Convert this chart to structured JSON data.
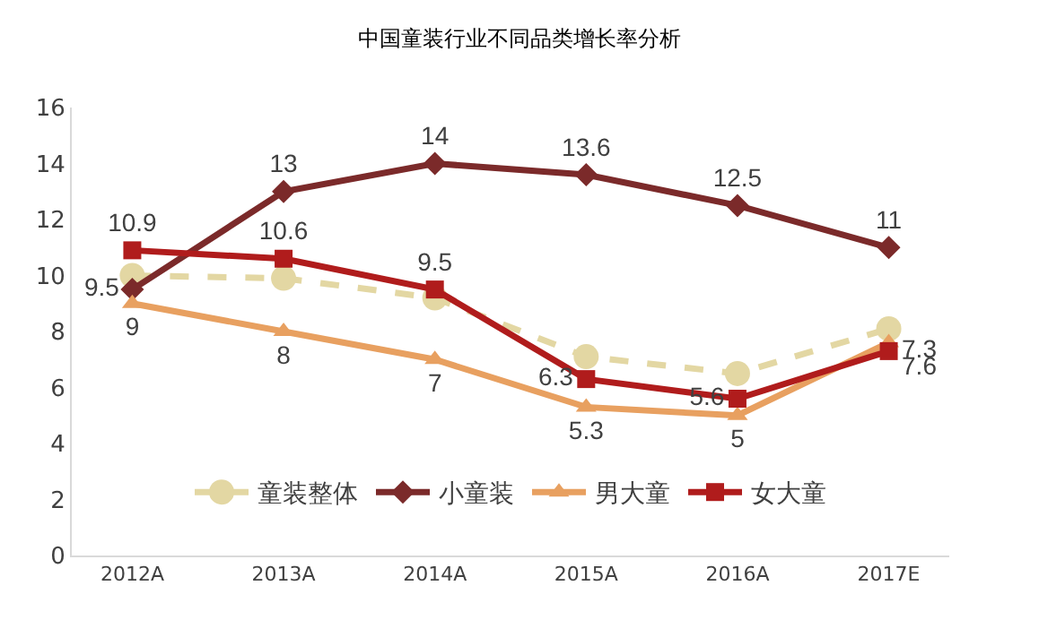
{
  "chart_data": {
    "type": "line",
    "title": "中国童装行业不同品类增长率分析",
    "categories": [
      "2012A",
      "2013A",
      "2014A",
      "2015A",
      "2016A",
      "2017E"
    ],
    "ylim": [
      0,
      16
    ],
    "yticks": [
      0,
      2,
      4,
      6,
      8,
      10,
      12,
      14,
      16
    ],
    "grid": false,
    "legend": "bottom",
    "series": [
      {
        "name": "童装整体",
        "color": "#e3d7a3",
        "values": [
          10.0,
          9.9,
          9.2,
          7.1,
          6.5,
          8.1
        ],
        "marker": "circle",
        "line_style": "dashed"
      },
      {
        "name": "小童装",
        "color": "#7b2a2a",
        "values": [
          9.5,
          13,
          14,
          13.6,
          12.5,
          11
        ],
        "marker": "diamond",
        "line_style": "solid",
        "value_labels": [
          "9.5",
          "13",
          "14",
          "13.6",
          "12.5",
          "11"
        ]
      },
      {
        "name": "男大童",
        "color": "#e8a060",
        "values": [
          9,
          8,
          7,
          5.3,
          5,
          7.6
        ],
        "marker": "triangle",
        "line_style": "solid",
        "value_labels": [
          "9",
          "8",
          "7",
          "5.3",
          "5",
          "7.6"
        ]
      },
      {
        "name": "女大童",
        "color": "#b01c1c",
        "values": [
          10.9,
          10.6,
          9.5,
          6.3,
          5.6,
          7.3
        ],
        "marker": "square",
        "line_style": "solid",
        "value_labels": [
          "10.9",
          "10.6",
          "9.5",
          "6.3",
          "5.6",
          "7.3"
        ]
      }
    ]
  }
}
